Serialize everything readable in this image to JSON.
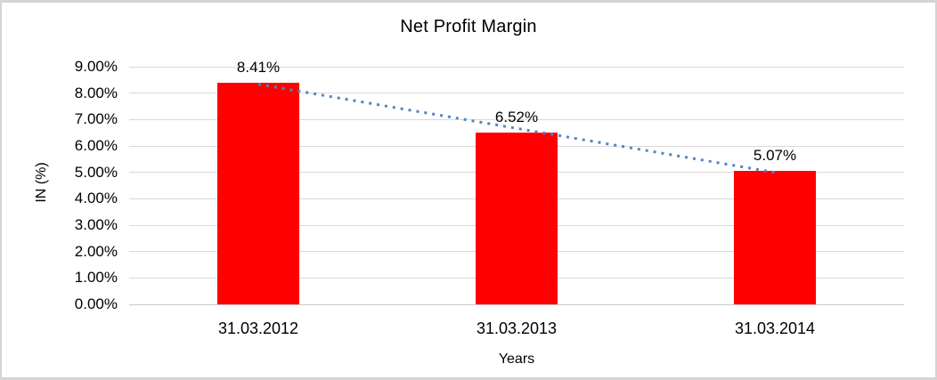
{
  "window": {
    "background": "#FFFFFF",
    "frame_border_color": "#D4D4D4"
  },
  "chart_data": {
    "type": "bar",
    "title": "Net Profit Margin",
    "categories": [
      "31.03.2012",
      "31.03.2013",
      "31.03.2014"
    ],
    "values": [
      8.41,
      6.52,
      5.07
    ],
    "data_labels": [
      "8.41%",
      "6.52%",
      "5.07%"
    ],
    "xlabel": "Years",
    "ylabel": "IN (%)",
    "ylim": [
      0,
      9
    ],
    "y_tick_labels": [
      "0.00%",
      "1.00%",
      "2.00%",
      "3.00%",
      "4.00%",
      "5.00%",
      "6.00%",
      "7.00%",
      "8.00%",
      "9.00%"
    ],
    "grid": true,
    "legend_position": "none",
    "bar_color": "#FF0000",
    "gridline_color": "#D9D9D9",
    "text_color": "#000000",
    "trendline": {
      "type": "linear",
      "style": "dotted",
      "color": "#4F86C6"
    }
  }
}
